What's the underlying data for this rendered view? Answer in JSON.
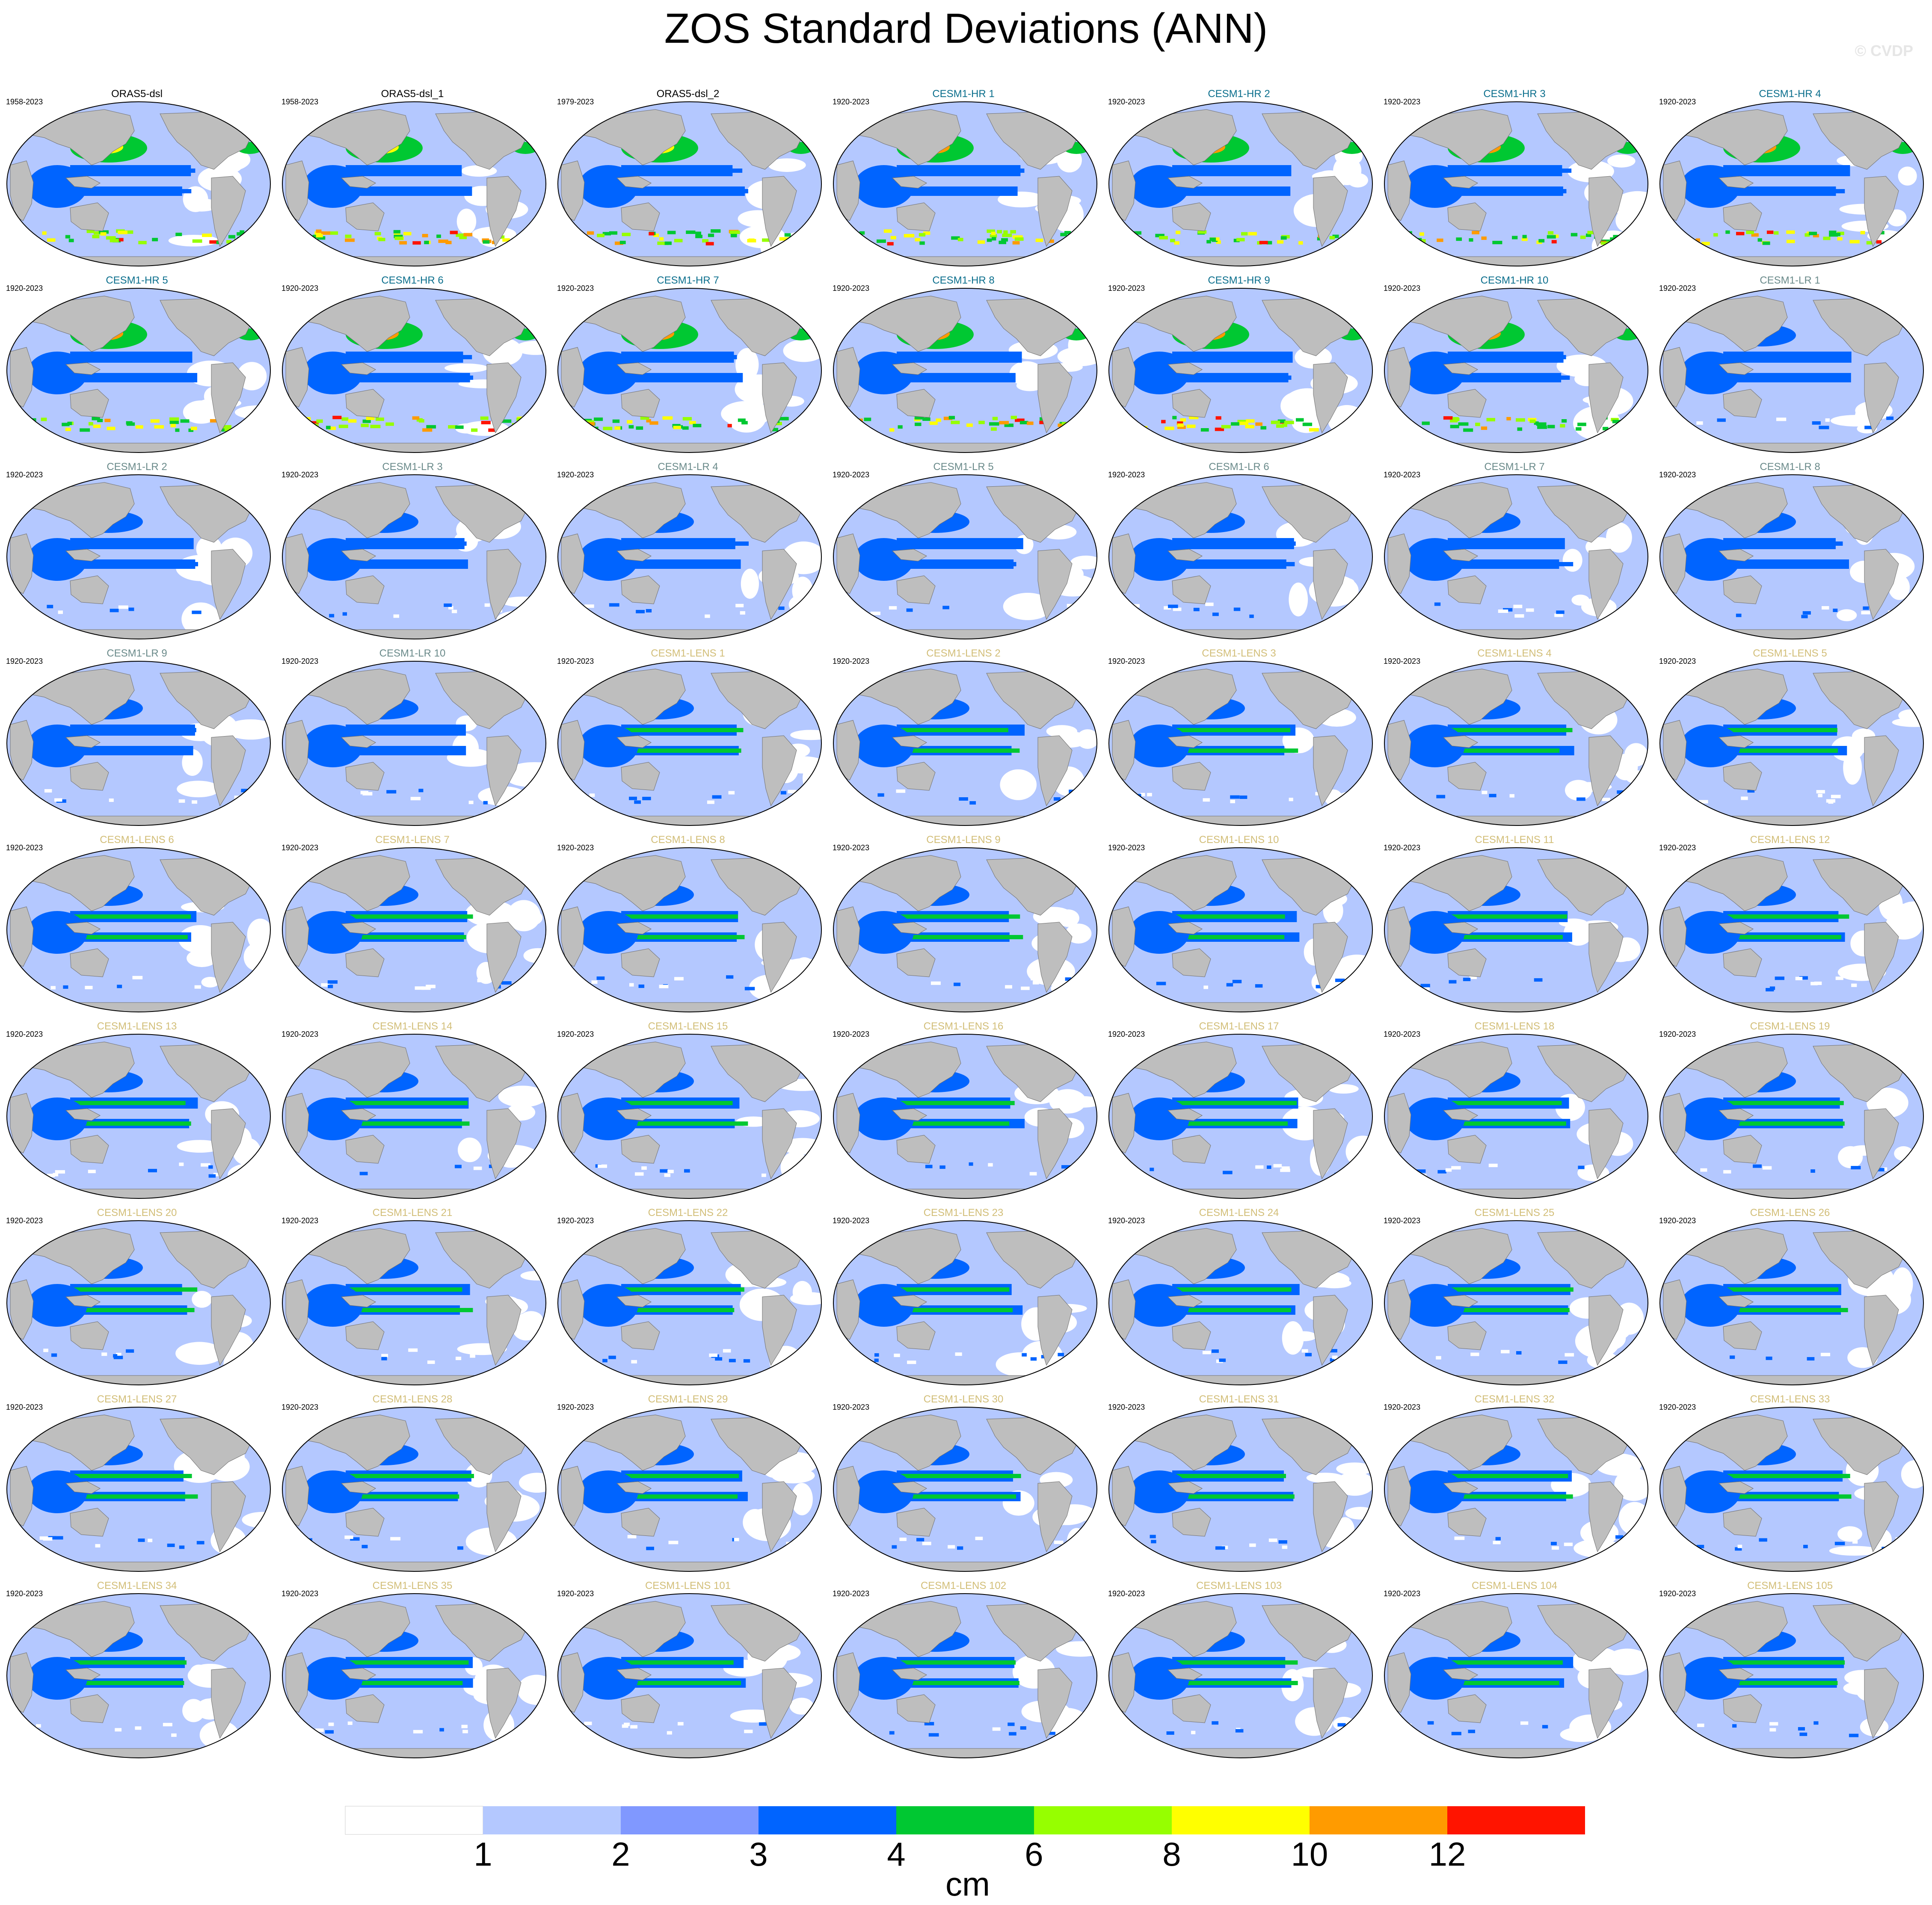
{
  "title": "ZOS Standard Deviations (ANN)",
  "copyright": "© CVDP",
  "units": "cm",
  "colorbar": {
    "ticks": [
      "1",
      "2",
      "3",
      "4",
      "6",
      "8",
      "10",
      "12"
    ],
    "colors": [
      "#ffffff",
      "#b4c8ff",
      "#8098ff",
      "#0064ff",
      "#00c832",
      "#96ff00",
      "#ffff00",
      "#ff9b00",
      "#ff1400"
    ]
  },
  "colors": {
    "land": "#bebebe",
    "land_edge": "#707070",
    "orass_title": "#000000",
    "hr_title": "#0a6e8c",
    "lr_title": "#6a8a8a",
    "lens_title": "#d2be78"
  },
  "panels": [
    {
      "title": "ORAS5-dsl",
      "years": "1958-2023",
      "group": "orass"
    },
    {
      "title": "ORAS5-dsl_1",
      "years": "1958-2023",
      "group": "orass"
    },
    {
      "title": "ORAS5-dsl_2",
      "years": "1979-2023",
      "group": "orass"
    },
    {
      "title": "CESM1-HR 1",
      "years": "1920-2023",
      "group": "hr"
    },
    {
      "title": "CESM1-HR 2",
      "years": "1920-2023",
      "group": "hr"
    },
    {
      "title": "CESM1-HR 3",
      "years": "1920-2023",
      "group": "hr"
    },
    {
      "title": "CESM1-HR 4",
      "years": "1920-2023",
      "group": "hr"
    },
    {
      "title": "CESM1-HR 5",
      "years": "1920-2023",
      "group": "hr"
    },
    {
      "title": "CESM1-HR 6",
      "years": "1920-2023",
      "group": "hr"
    },
    {
      "title": "CESM1-HR 7",
      "years": "1920-2023",
      "group": "hr"
    },
    {
      "title": "CESM1-HR 8",
      "years": "1920-2023",
      "group": "hr"
    },
    {
      "title": "CESM1-HR 9",
      "years": "1920-2023",
      "group": "hr"
    },
    {
      "title": "CESM1-HR 10",
      "years": "1920-2023",
      "group": "hr"
    },
    {
      "title": "CESM1-LR 1",
      "years": "1920-2023",
      "group": "lr"
    },
    {
      "title": "CESM1-LR 2",
      "years": "1920-2023",
      "group": "lr"
    },
    {
      "title": "CESM1-LR 3",
      "years": "1920-2023",
      "group": "lr"
    },
    {
      "title": "CESM1-LR 4",
      "years": "1920-2023",
      "group": "lr"
    },
    {
      "title": "CESM1-LR 5",
      "years": "1920-2023",
      "group": "lr"
    },
    {
      "title": "CESM1-LR 6",
      "years": "1920-2023",
      "group": "lr"
    },
    {
      "title": "CESM1-LR 7",
      "years": "1920-2023",
      "group": "lr"
    },
    {
      "title": "CESM1-LR 8",
      "years": "1920-2023",
      "group": "lr"
    },
    {
      "title": "CESM1-LR 9",
      "years": "1920-2023",
      "group": "lr"
    },
    {
      "title": "CESM1-LR 10",
      "years": "1920-2023",
      "group": "lr"
    },
    {
      "title": "CESM1-LENS 1",
      "years": "1920-2023",
      "group": "lens"
    },
    {
      "title": "CESM1-LENS 2",
      "years": "1920-2023",
      "group": "lens"
    },
    {
      "title": "CESM1-LENS 3",
      "years": "1920-2023",
      "group": "lens"
    },
    {
      "title": "CESM1-LENS 4",
      "years": "1920-2023",
      "group": "lens"
    },
    {
      "title": "CESM1-LENS 5",
      "years": "1920-2023",
      "group": "lens"
    },
    {
      "title": "CESM1-LENS 6",
      "years": "1920-2023",
      "group": "lens"
    },
    {
      "title": "CESM1-LENS 7",
      "years": "1920-2023",
      "group": "lens"
    },
    {
      "title": "CESM1-LENS 8",
      "years": "1920-2023",
      "group": "lens"
    },
    {
      "title": "CESM1-LENS 9",
      "years": "1920-2023",
      "group": "lens"
    },
    {
      "title": "CESM1-LENS 10",
      "years": "1920-2023",
      "group": "lens"
    },
    {
      "title": "CESM1-LENS 11",
      "years": "1920-2023",
      "group": "lens"
    },
    {
      "title": "CESM1-LENS 12",
      "years": "1920-2023",
      "group": "lens"
    },
    {
      "title": "CESM1-LENS 13",
      "years": "1920-2023",
      "group": "lens"
    },
    {
      "title": "CESM1-LENS 14",
      "years": "1920-2023",
      "group": "lens"
    },
    {
      "title": "CESM1-LENS 15",
      "years": "1920-2023",
      "group": "lens"
    },
    {
      "title": "CESM1-LENS 16",
      "years": "1920-2023",
      "group": "lens"
    },
    {
      "title": "CESM1-LENS 17",
      "years": "1920-2023",
      "group": "lens"
    },
    {
      "title": "CESM1-LENS 18",
      "years": "1920-2023",
      "group": "lens"
    },
    {
      "title": "CESM1-LENS 19",
      "years": "1920-2023",
      "group": "lens"
    },
    {
      "title": "CESM1-LENS 20",
      "years": "1920-2023",
      "group": "lens"
    },
    {
      "title": "CESM1-LENS 21",
      "years": "1920-2023",
      "group": "lens"
    },
    {
      "title": "CESM1-LENS 22",
      "years": "1920-2023",
      "group": "lens"
    },
    {
      "title": "CESM1-LENS 23",
      "years": "1920-2023",
      "group": "lens"
    },
    {
      "title": "CESM1-LENS 24",
      "years": "1920-2023",
      "group": "lens"
    },
    {
      "title": "CESM1-LENS 25",
      "years": "1920-2023",
      "group": "lens"
    },
    {
      "title": "CESM1-LENS 26",
      "years": "1920-2023",
      "group": "lens"
    },
    {
      "title": "CESM1-LENS 27",
      "years": "1920-2023",
      "group": "lens"
    },
    {
      "title": "CESM1-LENS 28",
      "years": "1920-2023",
      "group": "lens"
    },
    {
      "title": "CESM1-LENS 29",
      "years": "1920-2023",
      "group": "lens"
    },
    {
      "title": "CESM1-LENS 30",
      "years": "1920-2023",
      "group": "lens"
    },
    {
      "title": "CESM1-LENS 31",
      "years": "1920-2023",
      "group": "lens"
    },
    {
      "title": "CESM1-LENS 32",
      "years": "1920-2023",
      "group": "lens"
    },
    {
      "title": "CESM1-LENS 33",
      "years": "1920-2023",
      "group": "lens"
    },
    {
      "title": "CESM1-LENS 34",
      "years": "1920-2023",
      "group": "lens"
    },
    {
      "title": "CESM1-LENS 35",
      "years": "1920-2023",
      "group": "lens"
    },
    {
      "title": "CESM1-LENS 101",
      "years": "1920-2023",
      "group": "lens"
    },
    {
      "title": "CESM1-LENS 102",
      "years": "1920-2023",
      "group": "lens"
    },
    {
      "title": "CESM1-LENS 103",
      "years": "1920-2023",
      "group": "lens"
    },
    {
      "title": "CESM1-LENS 104",
      "years": "1920-2023",
      "group": "lens"
    },
    {
      "title": "CESM1-LENS 105",
      "years": "1920-2023",
      "group": "lens"
    }
  ]
}
